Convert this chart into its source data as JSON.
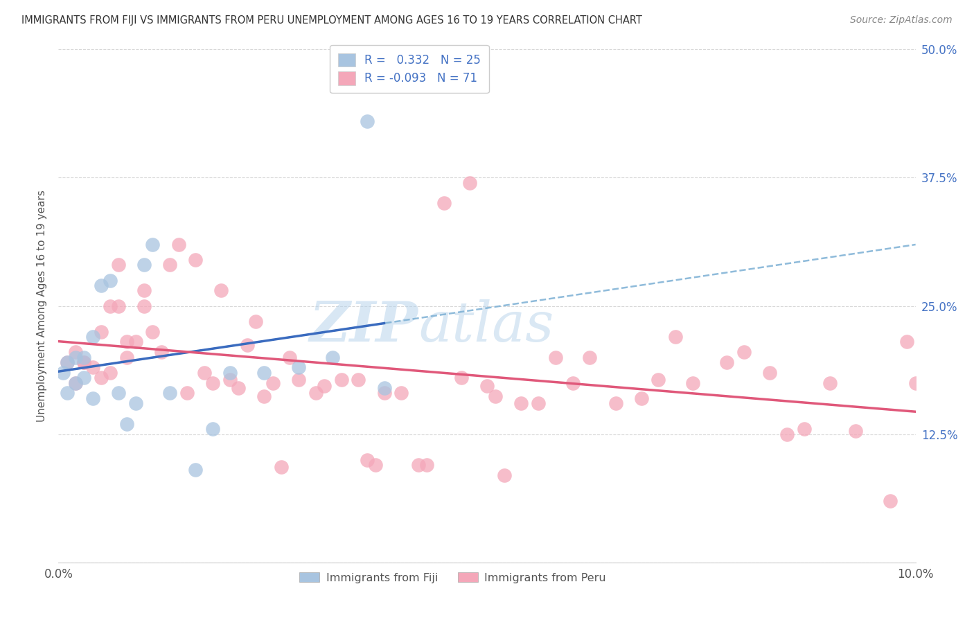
{
  "title": "IMMIGRANTS FROM FIJI VS IMMIGRANTS FROM PERU UNEMPLOYMENT AMONG AGES 16 TO 19 YEARS CORRELATION CHART",
  "source": "Source: ZipAtlas.com",
  "ylabel": "Unemployment Among Ages 16 to 19 years",
  "xlim": [
    0.0,
    0.1
  ],
  "ylim": [
    0.0,
    0.5
  ],
  "yticks_right": [
    0.0,
    0.125,
    0.25,
    0.375,
    0.5
  ],
  "yticklabels_right": [
    "",
    "12.5%",
    "25.0%",
    "37.5%",
    "50.0%"
  ],
  "fiji_color": "#a8c4e0",
  "peru_color": "#f4a7b9",
  "fiji_line_color": "#3a6bbf",
  "peru_line_color": "#e0587a",
  "dashed_line_color": "#7bafd4",
  "fiji_R": 0.332,
  "fiji_N": 25,
  "peru_R": -0.093,
  "peru_N": 71,
  "fiji_x": [
    0.0005,
    0.001,
    0.001,
    0.002,
    0.002,
    0.003,
    0.003,
    0.004,
    0.004,
    0.005,
    0.006,
    0.007,
    0.008,
    0.009,
    0.01,
    0.011,
    0.013,
    0.016,
    0.018,
    0.02,
    0.024,
    0.028,
    0.032,
    0.036,
    0.038
  ],
  "fiji_y": [
    0.185,
    0.165,
    0.195,
    0.175,
    0.2,
    0.2,
    0.18,
    0.16,
    0.22,
    0.27,
    0.275,
    0.165,
    0.135,
    0.155,
    0.29,
    0.31,
    0.165,
    0.09,
    0.13,
    0.185,
    0.185,
    0.19,
    0.2,
    0.43,
    0.17
  ],
  "peru_x": [
    0.001,
    0.002,
    0.002,
    0.003,
    0.003,
    0.004,
    0.005,
    0.005,
    0.006,
    0.006,
    0.007,
    0.007,
    0.008,
    0.008,
    0.009,
    0.01,
    0.01,
    0.011,
    0.012,
    0.013,
    0.014,
    0.015,
    0.016,
    0.017,
    0.018,
    0.019,
    0.02,
    0.021,
    0.022,
    0.023,
    0.024,
    0.025,
    0.026,
    0.027,
    0.028,
    0.03,
    0.031,
    0.033,
    0.035,
    0.036,
    0.037,
    0.038,
    0.04,
    0.042,
    0.043,
    0.045,
    0.047,
    0.048,
    0.05,
    0.051,
    0.052,
    0.054,
    0.056,
    0.058,
    0.06,
    0.062,
    0.065,
    0.068,
    0.07,
    0.072,
    0.074,
    0.078,
    0.08,
    0.083,
    0.085,
    0.087,
    0.09,
    0.093,
    0.097,
    0.099,
    0.1
  ],
  "peru_y": [
    0.195,
    0.175,
    0.205,
    0.195,
    0.195,
    0.19,
    0.18,
    0.225,
    0.185,
    0.25,
    0.25,
    0.29,
    0.2,
    0.215,
    0.215,
    0.25,
    0.265,
    0.225,
    0.205,
    0.29,
    0.31,
    0.165,
    0.295,
    0.185,
    0.175,
    0.265,
    0.178,
    0.17,
    0.212,
    0.235,
    0.162,
    0.175,
    0.093,
    0.2,
    0.178,
    0.165,
    0.172,
    0.178,
    0.178,
    0.1,
    0.095,
    0.165,
    0.165,
    0.095,
    0.095,
    0.35,
    0.18,
    0.37,
    0.172,
    0.162,
    0.085,
    0.155,
    0.155,
    0.2,
    0.175,
    0.2,
    0.155,
    0.16,
    0.178,
    0.22,
    0.175,
    0.195,
    0.205,
    0.185,
    0.125,
    0.13,
    0.175,
    0.128,
    0.06,
    0.215,
    0.175
  ],
  "watermark_zip": "ZIP",
  "watermark_atlas": "atlas",
  "background_color": "#ffffff",
  "grid_color": "#d8d8d8"
}
